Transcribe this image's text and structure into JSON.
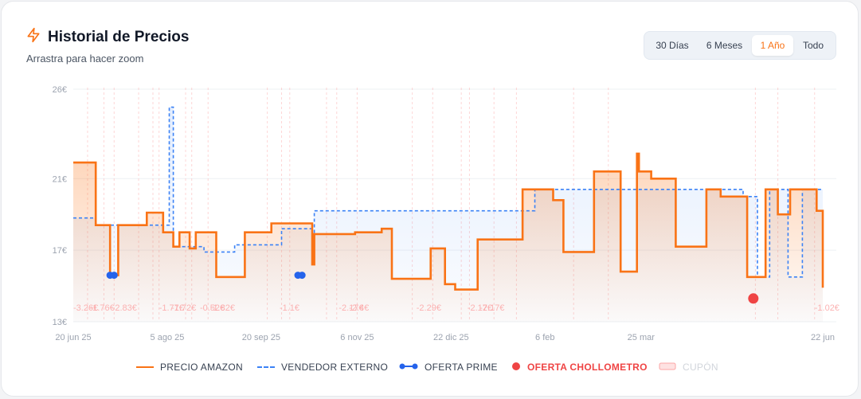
{
  "header": {
    "title": "Historial de Precios",
    "subtitle": "Arrastra para hacer zoom",
    "icon": "lightning-icon"
  },
  "range_selector": {
    "options": [
      "30 Días",
      "6 Meses",
      "1 Año",
      "Todo"
    ],
    "selected": "1 Año"
  },
  "colors": {
    "amazon": "#f97316",
    "external": "#3b82f6",
    "prime": "#2563eb",
    "chollometro": "#ef4444",
    "coupon": "#fca5a5"
  },
  "legend": {
    "amazon": "PRECIO AMAZON",
    "external": "VENDEDOR EXTERNO",
    "prime": "OFERTA PRIME",
    "chollometro": "OFERTA CHOLLOMETRO",
    "coupon": "CUPÓN"
  },
  "chart_data": {
    "type": "line",
    "x_axis": {
      "start": "2025-06-20",
      "end": "2026-06-22",
      "ticks": [
        {
          "label": "20 jun 25",
          "date": "2025-06-20"
        },
        {
          "label": "5 ago 25",
          "date": "2025-08-05"
        },
        {
          "label": "20 sep 25",
          "date": "2025-09-20"
        },
        {
          "label": "6 nov 25",
          "date": "2025-11-06"
        },
        {
          "label": "22 dic 25",
          "date": "2025-12-22"
        },
        {
          "label": "6 feb",
          "date": "2026-02-06"
        },
        {
          "label": "25 mar",
          "date": "2026-03-25"
        },
        {
          "label": "22 jun",
          "date": "2026-06-22"
        }
      ]
    },
    "y_axis": {
      "min": 13,
      "max": 26,
      "ticks": [
        {
          "label": "13€",
          "value": 13
        },
        {
          "label": "17€",
          "value": 17
        },
        {
          "label": "21€",
          "value": 21
        },
        {
          "label": "26€",
          "value": 26
        }
      ]
    },
    "series": [
      {
        "name": "PRECIO AMAZON",
        "style": "step",
        "points": [
          [
            "2025-06-20",
            21.9
          ],
          [
            "2025-07-01",
            18.4
          ],
          [
            "2025-07-08",
            15.6
          ],
          [
            "2025-07-12",
            18.4
          ],
          [
            "2025-07-26",
            19.1
          ],
          [
            "2025-08-03",
            18.0
          ],
          [
            "2025-08-08",
            17.2
          ],
          [
            "2025-08-11",
            18.0
          ],
          [
            "2025-08-16",
            17.1
          ],
          [
            "2025-08-19",
            18.0
          ],
          [
            "2025-08-29",
            15.5
          ],
          [
            "2025-09-12",
            18.0
          ],
          [
            "2025-09-25",
            18.5
          ],
          [
            "2025-10-15",
            16.2
          ],
          [
            "2025-10-16",
            17.9
          ],
          [
            "2025-10-18",
            17.9
          ],
          [
            "2025-11-05",
            18.0
          ],
          [
            "2025-11-18",
            18.2
          ],
          [
            "2025-11-23",
            15.4
          ],
          [
            "2025-12-12",
            17.1
          ],
          [
            "2025-12-19",
            15.1
          ],
          [
            "2025-12-24",
            14.8
          ],
          [
            "2026-01-04",
            17.6
          ],
          [
            "2026-01-26",
            20.4
          ],
          [
            "2026-02-10",
            19.8
          ],
          [
            "2026-02-15",
            16.9
          ],
          [
            "2026-03-02",
            21.4
          ],
          [
            "2026-03-15",
            15.8
          ],
          [
            "2026-03-23",
            22.4
          ],
          [
            "2026-03-24",
            21.4
          ],
          [
            "2026-03-30",
            21.0
          ],
          [
            "2026-04-11",
            17.2
          ],
          [
            "2026-04-26",
            20.4
          ],
          [
            "2026-05-03",
            20.0
          ],
          [
            "2026-05-16",
            15.5
          ],
          [
            "2026-05-25",
            20.4
          ],
          [
            "2026-05-31",
            19.0
          ],
          [
            "2026-06-06",
            20.4
          ],
          [
            "2026-06-19",
            19.2
          ],
          [
            "2026-06-22",
            14.9
          ]
        ]
      },
      {
        "name": "VENDEDOR EXTERNO",
        "style": "step-dashed",
        "points": [
          [
            "2025-06-20",
            18.8
          ],
          [
            "2025-07-01",
            18.4
          ],
          [
            "2025-08-06",
            25.0
          ],
          [
            "2025-08-08",
            17.2
          ],
          [
            "2025-08-23",
            16.9
          ],
          [
            "2025-09-07",
            17.3
          ],
          [
            "2025-09-30",
            18.2
          ],
          [
            "2025-10-15",
            17.9
          ],
          [
            "2025-10-16",
            19.2
          ],
          [
            "2026-02-01",
            20.4
          ],
          [
            "2026-05-14",
            20.0
          ],
          [
            "2026-05-21",
            15.5
          ],
          [
            "2026-05-27",
            20.4
          ],
          [
            "2026-06-05",
            15.5
          ],
          [
            "2026-06-12",
            20.4
          ],
          [
            "2026-06-22",
            20.4
          ]
        ]
      }
    ],
    "prime_offers": [
      {
        "start": "2025-07-08",
        "end": "2025-07-10",
        "price": 15.6
      },
      {
        "start": "2025-10-08",
        "end": "2025-10-10",
        "price": 15.6
      }
    ],
    "chollometro_offers": [
      {
        "date": "2026-05-19",
        "price": 14.3
      }
    ],
    "coupon_labels": [
      {
        "date": "2025-06-20",
        "label": "-3.26€"
      },
      {
        "date": "2025-06-28",
        "label": "-1.76€"
      },
      {
        "date": "2025-07-09",
        "label": "-2.83€"
      },
      {
        "date": "2025-08-01",
        "label": "-1.77€"
      },
      {
        "date": "2025-08-07",
        "label": "-1.72€"
      },
      {
        "date": "2025-08-21",
        "label": "-0.52€"
      },
      {
        "date": "2025-08-26",
        "label": "-1.82€"
      },
      {
        "date": "2025-09-29",
        "label": "-1.1€"
      },
      {
        "date": "2025-10-28",
        "label": "-2.17€"
      },
      {
        "date": "2025-11-02",
        "label": "-2.4€"
      },
      {
        "date": "2025-12-05",
        "label": "-2.29€"
      },
      {
        "date": "2025-12-30",
        "label": "-2.17€"
      },
      {
        "date": "2026-01-05",
        "label": "-2.17€"
      },
      {
        "date": "2026-06-18",
        "label": "-1.02€"
      }
    ],
    "coupon_marks": [
      "2025-06-27",
      "2025-07-05",
      "2025-07-10",
      "2025-07-22",
      "2025-07-29",
      "2025-08-01",
      "2025-08-14",
      "2025-08-17",
      "2025-08-25",
      "2025-09-23",
      "2025-09-30",
      "2025-10-04",
      "2025-10-22",
      "2025-10-27",
      "2025-11-06",
      "2025-12-03",
      "2025-12-13",
      "2025-12-27",
      "2025-12-31",
      "2026-01-12",
      "2026-01-23",
      "2026-02-20",
      "2026-03-09",
      "2026-05-20",
      "2026-05-31",
      "2026-06-18"
    ]
  }
}
